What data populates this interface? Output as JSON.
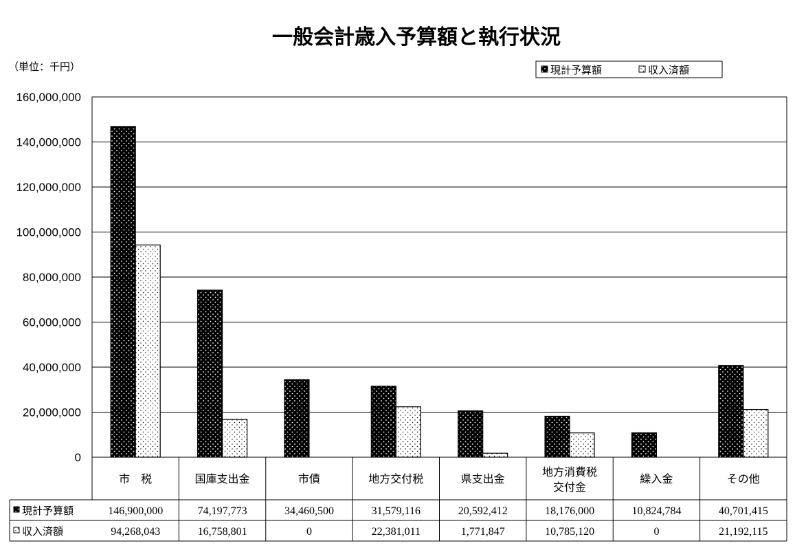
{
  "chart_data": {
    "type": "bar",
    "title": "一般会計歳入予算額と執行状況",
    "unit_label": "（単位：千円）",
    "categories": [
      "市　税",
      "国庫支出金",
      "市債",
      "地方交付税",
      "県支出金",
      "地方消費税\n交付金",
      "繰入金",
      "その他"
    ],
    "series": [
      {
        "name": "現計予算額",
        "values": [
          146900000,
          74197773,
          34460500,
          31579116,
          20592412,
          18176000,
          10824784,
          40701415
        ],
        "labels": [
          "146,900,000",
          "74,197,773",
          "34,460,500",
          "31,579,116",
          "20,592,412",
          "18,176,000",
          "10,824,784",
          "40,701,415"
        ]
      },
      {
        "name": "収入済額",
        "values": [
          94268043,
          16758801,
          0,
          22381011,
          1771847,
          10785120,
          0,
          21192115
        ],
        "labels": [
          "94,268,043",
          "16,758,801",
          "0",
          "22,381,011",
          "1,771,847",
          "10,785,120",
          "0",
          "21,192,115"
        ]
      }
    ],
    "yticks": [
      "0",
      "20,000,000",
      "40,000,000",
      "60,000,000",
      "80,000,000",
      "100,000,000",
      "120,000,000",
      "140,000,000",
      "160,000,000"
    ],
    "ylim": [
      0,
      160000000
    ],
    "grid": true,
    "legend_position": "top-right",
    "colors": {
      "budget_fill": "#000000",
      "budget_dots": "#ffffff",
      "revenue_fill": "#ffffff",
      "revenue_dots": "#000000"
    }
  }
}
